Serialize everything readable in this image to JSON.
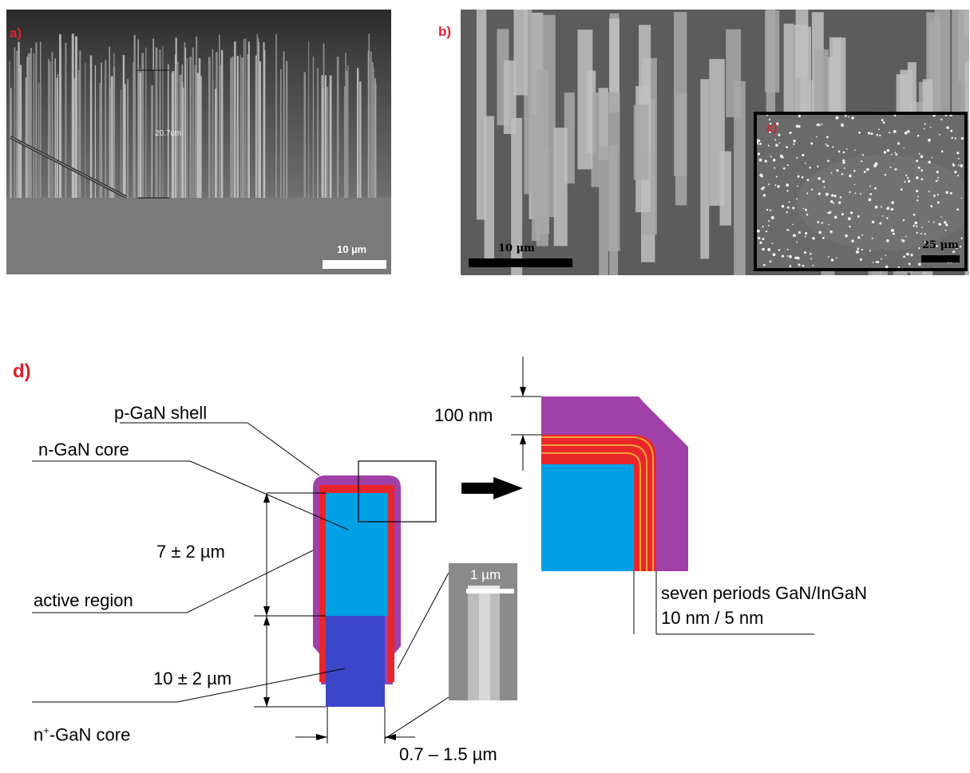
{
  "panels": {
    "a": {
      "label": "a)",
      "measure": "20.7um",
      "scalebar": "10 µm"
    },
    "b": {
      "label": "b)",
      "scalebar": "10 µm"
    },
    "c": {
      "label": "c)",
      "scalebar": "25 µm"
    },
    "d": {
      "label": "d)"
    }
  },
  "diagram": {
    "p_shell": "p-GaN shell",
    "n_core": "n-GaN core",
    "active_region": "active region",
    "n_plus_core": "-GaN core",
    "n_plus_prefix": "n",
    "n_plus_sup": "+",
    "upper_length": "7 ± 2 µm",
    "lower_length": "10 ± 2 µm",
    "width": "0.7 – 1.5 µm",
    "zoom_scale": "100 nm",
    "qw_line1": "seven periods GaN/InGaN",
    "qw_line2": "10 nm / 5 nm",
    "inset_scale": "1 µm"
  },
  "colors": {
    "p_shell": "#a040a8",
    "active": "#e8262a",
    "n_core": "#00a0e4",
    "n_plus_core": "#3c46c8",
    "quantum_well": "#f6a23a",
    "label_red": "#e0202a"
  }
}
